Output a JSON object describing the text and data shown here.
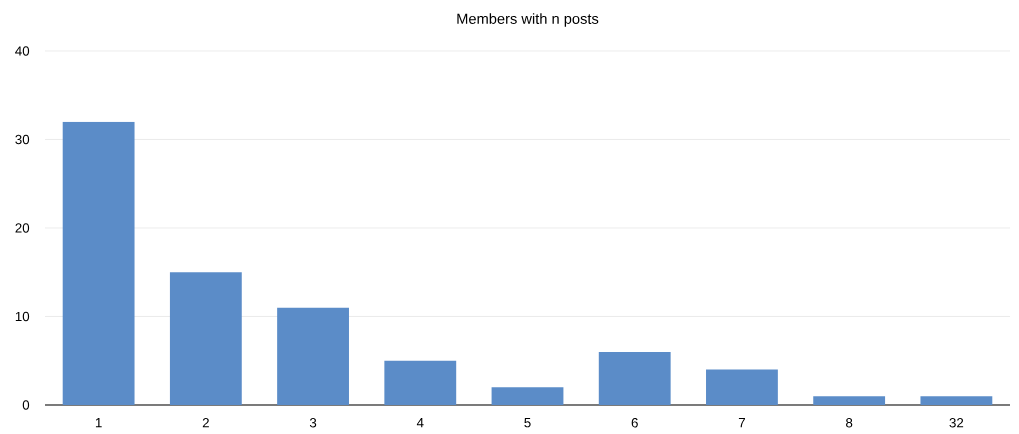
{
  "chart_data": {
    "type": "bar",
    "title": "Members with n posts",
    "categories": [
      "1",
      "2",
      "3",
      "4",
      "5",
      "6",
      "7",
      "8",
      "32"
    ],
    "values": [
      32,
      15,
      11,
      5,
      2,
      6,
      4,
      1,
      1
    ],
    "color": "#5b8cc8",
    "ylim": [
      0,
      40
    ],
    "yticks": [
      0,
      10,
      20,
      30,
      40
    ],
    "grid": "y"
  }
}
